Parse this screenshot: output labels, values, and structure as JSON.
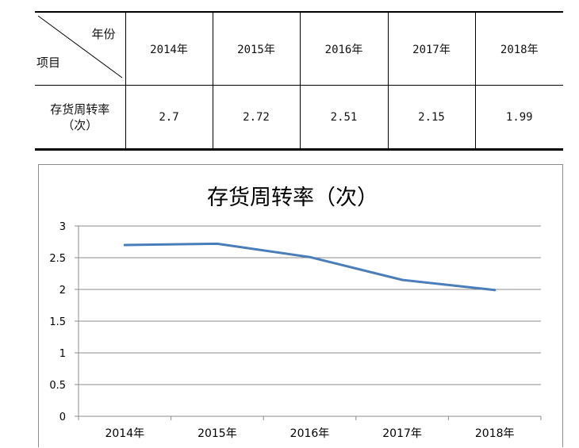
{
  "table": {
    "corner_col_header": "年份",
    "corner_row_header": "项目",
    "years": [
      "2014年",
      "2015年",
      "2016年",
      "2017年",
      "2018年"
    ],
    "row_label_line1": "存货周转率",
    "row_label_line2": "（次）",
    "values": [
      "2.7",
      "2.72",
      "2.51",
      "2.15",
      "1.99"
    ]
  },
  "chart_data": {
    "type": "line",
    "title": "存货周转率（次）",
    "categories": [
      "2014年",
      "2015年",
      "2016年",
      "2017年",
      "2018年"
    ],
    "series": [
      {
        "values": [
          2.7,
          2.72,
          2.51,
          2.15,
          1.99
        ],
        "color": "#4a7ebb"
      }
    ],
    "ylim": [
      0,
      3
    ],
    "y_ticks": [
      "0",
      "0.5",
      "1",
      "1.5",
      "2",
      "2.5",
      "3"
    ],
    "grid": true,
    "legend": "none",
    "xlabel": "",
    "ylabel": ""
  }
}
